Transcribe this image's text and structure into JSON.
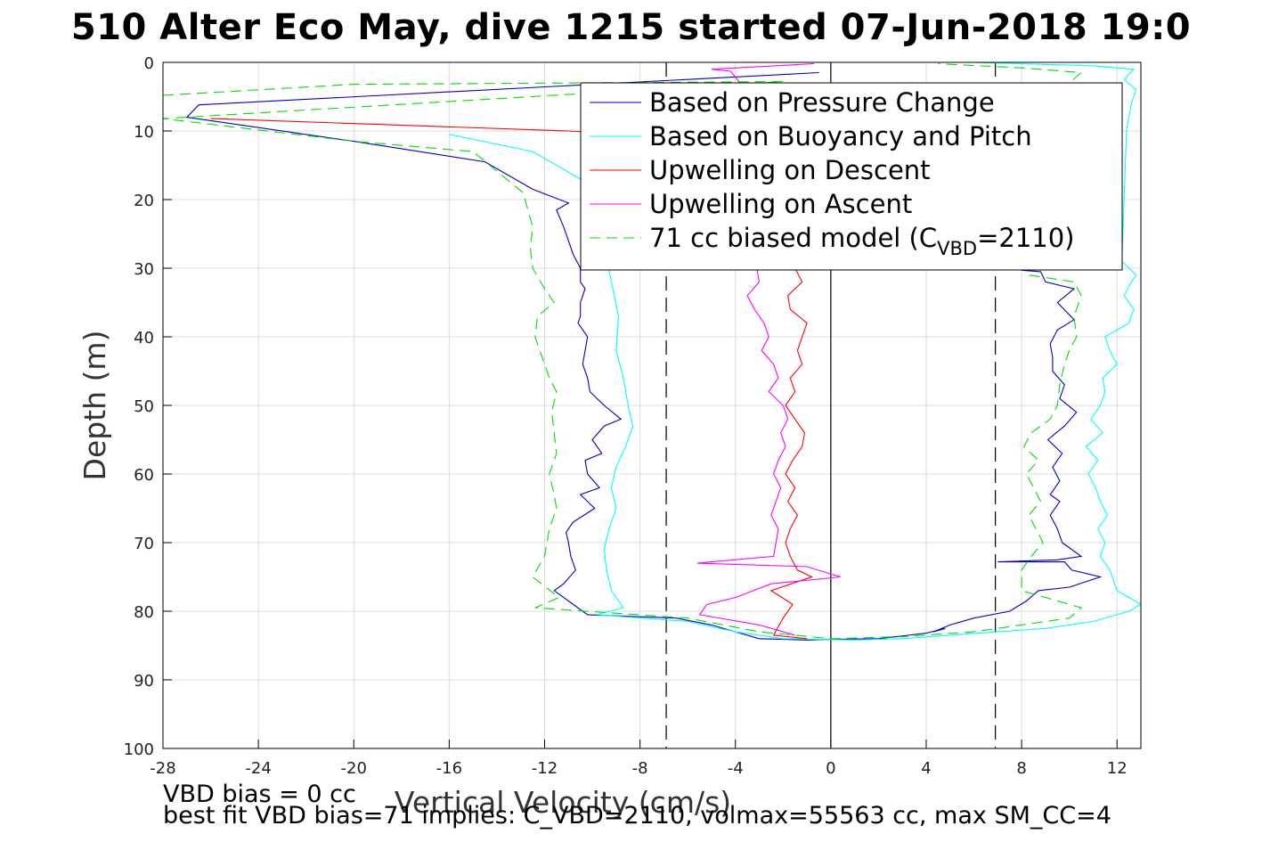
{
  "title": "510 Alter Eco May, dive 1215 started 07-Jun-2018 19:0",
  "notes": {
    "bias": "VBD bias = 0 cc",
    "fit": "best fit VBD bias=71 implies: C_VBD=2110, volmax=55563 cc, max SM_CC=4"
  },
  "chart_data": {
    "type": "line",
    "xlabel": "Vertical Velocity (cm/s)",
    "ylabel": "Depth (m)",
    "xlim": [
      -28,
      13
    ],
    "ylim": [
      0,
      100
    ],
    "y_reversed": true,
    "xticks": [
      -28,
      -24,
      -20,
      -16,
      -12,
      -8,
      -4,
      0,
      4,
      8,
      12
    ],
    "yticks": [
      0,
      10,
      20,
      30,
      40,
      50,
      60,
      70,
      80,
      90,
      100
    ],
    "grid": true,
    "legend_position": "top-right",
    "reference_lines": [
      {
        "x": 0,
        "style": "solid",
        "color": "#000000"
      },
      {
        "x": -6.9,
        "style": "dashed",
        "color": "#000000"
      },
      {
        "x": 6.9,
        "style": "dashed",
        "color": "#000000"
      }
    ],
    "series": [
      {
        "name": "Based on Pressure Change",
        "color": "#0000cc",
        "dash": "solid",
        "points": [
          [
            -0.5,
            1.5
          ],
          [
            -26.5,
            6.2
          ],
          [
            -27,
            8
          ],
          [
            -20,
            11.5
          ],
          [
            -14.5,
            14.5
          ],
          [
            -12.5,
            18.5
          ],
          [
            -11,
            20.5
          ],
          [
            -11.5,
            21.5
          ],
          [
            -11.2,
            24
          ],
          [
            -11,
            26
          ],
          [
            -10.8,
            28
          ],
          [
            -10.5,
            30
          ],
          [
            -10.5,
            32
          ],
          [
            -10.3,
            33
          ],
          [
            -10.5,
            35
          ],
          [
            -10.5,
            37
          ],
          [
            -10.6,
            38
          ],
          [
            -10.2,
            40
          ],
          [
            -10.3,
            42
          ],
          [
            -10.4,
            44
          ],
          [
            -10.2,
            46
          ],
          [
            -10.1,
            48
          ],
          [
            -9.5,
            50
          ],
          [
            -8.8,
            52
          ],
          [
            -9.5,
            53
          ],
          [
            -10,
            55
          ],
          [
            -9.6,
            57
          ],
          [
            -10.3,
            58
          ],
          [
            -10.2,
            60
          ],
          [
            -9.7,
            62
          ],
          [
            -10.5,
            63
          ],
          [
            -9.9,
            65
          ],
          [
            -10.8,
            67
          ],
          [
            -11.1,
            68.5
          ],
          [
            -11,
            70
          ],
          [
            -10.9,
            72
          ],
          [
            -10.7,
            74
          ],
          [
            -11.2,
            76
          ],
          [
            -11.6,
            77
          ],
          [
            -11,
            78.5
          ],
          [
            -10.2,
            80.5
          ],
          [
            -6.5,
            81
          ],
          [
            -5,
            82
          ],
          [
            -4,
            83
          ],
          [
            -3,
            84
          ],
          [
            -1,
            84.2
          ],
          [
            0,
            84.1
          ],
          [
            2,
            84
          ],
          [
            4,
            83.2
          ],
          [
            4.8,
            82.5
          ],
          [
            4.3,
            83
          ],
          [
            5,
            82
          ],
          [
            6,
            81
          ],
          [
            7.5,
            80
          ],
          [
            8.2,
            78.5
          ],
          [
            8.7,
            77
          ],
          [
            10,
            76.5
          ],
          [
            11.3,
            75
          ],
          [
            10.1,
            74
          ],
          [
            9.8,
            72.8
          ],
          [
            7,
            72.8
          ],
          [
            9.5,
            72.5
          ],
          [
            10.5,
            72
          ],
          [
            9.7,
            70
          ],
          [
            9.5,
            68
          ],
          [
            9.2,
            66
          ],
          [
            9.6,
            64
          ],
          [
            9.2,
            63
          ],
          [
            9.6,
            61
          ],
          [
            9.3,
            59
          ],
          [
            9.7,
            57
          ],
          [
            9.1,
            55
          ],
          [
            9.8,
            53
          ],
          [
            10.3,
            51
          ],
          [
            9.6,
            49
          ],
          [
            9.8,
            47
          ],
          [
            9.3,
            45
          ],
          [
            9.3,
            43
          ],
          [
            9.2,
            41
          ],
          [
            9.5,
            39
          ],
          [
            10.2,
            37.5
          ],
          [
            9.5,
            35
          ],
          [
            10.2,
            33
          ],
          [
            9,
            32
          ],
          [
            8.8,
            30.5
          ],
          [
            8,
            30.3
          ]
        ]
      },
      {
        "name": "Based on Buoyancy and Pitch",
        "color": "#00ffff",
        "dash": "solid",
        "points": [
          [
            -16,
            10.5
          ],
          [
            -12.5,
            13
          ],
          [
            -10.5,
            17
          ],
          [
            -9.8,
            22
          ],
          [
            -9.5,
            27
          ],
          [
            -9.2,
            32
          ],
          [
            -8.9,
            37
          ],
          [
            -9,
            42
          ],
          [
            -8.7,
            46
          ],
          [
            -8.5,
            50
          ],
          [
            -8.3,
            53
          ],
          [
            -8.6,
            56
          ],
          [
            -9,
            59
          ],
          [
            -9.2,
            62
          ],
          [
            -9,
            65
          ],
          [
            -9.3,
            68
          ],
          [
            -9.5,
            71
          ],
          [
            -9.4,
            74
          ],
          [
            -9.2,
            77
          ],
          [
            -8.7,
            79.5
          ],
          [
            -9.8,
            80.5
          ],
          [
            -6,
            81.5
          ],
          [
            -4,
            83
          ],
          [
            -2,
            84
          ],
          [
            1,
            84.2
          ],
          [
            3,
            84
          ],
          [
            5,
            83.5
          ],
          [
            7,
            83
          ],
          [
            9,
            82.5
          ],
          [
            11,
            81.5
          ],
          [
            12.5,
            80
          ],
          [
            13,
            79
          ],
          [
            12,
            77
          ],
          [
            11.7,
            74
          ],
          [
            11.3,
            72
          ],
          [
            11.5,
            70
          ],
          [
            11.2,
            68
          ],
          [
            11.6,
            66
          ],
          [
            11.3,
            64
          ],
          [
            11.1,
            62
          ],
          [
            10.8,
            60
          ],
          [
            11.2,
            58
          ],
          [
            10.7,
            56
          ],
          [
            11.4,
            54
          ],
          [
            10.9,
            52
          ],
          [
            11.3,
            50
          ],
          [
            11.5,
            48
          ],
          [
            11.4,
            46
          ],
          [
            12,
            44
          ],
          [
            11.7,
            42
          ],
          [
            11.5,
            40
          ],
          [
            12.5,
            38
          ],
          [
            12.7,
            36
          ],
          [
            12.3,
            34
          ],
          [
            12.6,
            32
          ],
          [
            12.8,
            31
          ],
          [
            12.5,
            30
          ],
          [
            12.2,
            29
          ],
          [
            12.4,
            10
          ],
          [
            12.5,
            8
          ],
          [
            12.6,
            6
          ],
          [
            12.8,
            4
          ],
          [
            12.3,
            2.5
          ],
          [
            12.7,
            1
          ],
          [
            11,
            0.5
          ],
          [
            6,
            0
          ]
        ]
      },
      {
        "name": "Upwelling on Descent",
        "color": "#ff0000",
        "dash": "solid",
        "points": [
          [
            -26,
            8.2
          ],
          [
            -11,
            10
          ],
          [
            -4,
            11.5
          ],
          [
            -1.5,
            30
          ],
          [
            -1.2,
            32
          ],
          [
            -1.8,
            34
          ],
          [
            -1.7,
            36
          ],
          [
            -1,
            38
          ],
          [
            -1.2,
            40
          ],
          [
            -1.4,
            42
          ],
          [
            -1.2,
            44
          ],
          [
            -1.7,
            46
          ],
          [
            -1.5,
            48
          ],
          [
            -1.9,
            50
          ],
          [
            -1.5,
            52
          ],
          [
            -1.1,
            54
          ],
          [
            -1.2,
            56
          ],
          [
            -1.6,
            58
          ],
          [
            -1.9,
            60
          ],
          [
            -1.5,
            62
          ],
          [
            -1.8,
            64
          ],
          [
            -1.4,
            66
          ],
          [
            -1.7,
            68
          ],
          [
            -1.9,
            70
          ],
          [
            -1.7,
            72
          ],
          [
            -1.4,
            74
          ],
          [
            -0.8,
            75
          ],
          [
            -2.5,
            77
          ],
          [
            -1.6,
            79
          ],
          [
            -2,
            81
          ],
          [
            -2.4,
            83.5
          ],
          [
            -1,
            84
          ]
        ]
      },
      {
        "name": "Upwelling on Ascent",
        "color": "#ff00ff",
        "dash": "solid",
        "points": [
          [
            -0.7,
            0.2
          ],
          [
            -5,
            1
          ],
          [
            -4.2,
            1.3
          ],
          [
            -3.8,
            3
          ],
          [
            -3.1,
            30
          ],
          [
            -3,
            32
          ],
          [
            -3.5,
            34
          ],
          [
            -3.2,
            36
          ],
          [
            -2.8,
            38
          ],
          [
            -2.6,
            40
          ],
          [
            -2.9,
            42
          ],
          [
            -2.4,
            44
          ],
          [
            -2.2,
            46
          ],
          [
            -2.6,
            48
          ],
          [
            -2,
            50
          ],
          [
            -1.8,
            52
          ],
          [
            -2.1,
            54
          ],
          [
            -1.9,
            56
          ],
          [
            -2.2,
            58
          ],
          [
            -2.4,
            60
          ],
          [
            -2.1,
            62
          ],
          [
            -2.3,
            64
          ],
          [
            -2.5,
            66
          ],
          [
            -2.2,
            68
          ],
          [
            -2.3,
            70
          ],
          [
            -2.4,
            72
          ],
          [
            -5.6,
            73
          ],
          [
            -1,
            73.5
          ],
          [
            0.4,
            75
          ],
          [
            -2.5,
            76
          ],
          [
            -4,
            78
          ],
          [
            -5.2,
            79
          ],
          [
            -5.5,
            80.5
          ],
          [
            -3,
            82
          ],
          [
            -1.5,
            83.5
          ]
        ]
      },
      {
        "name": "71 cc biased model (C_VBD=2110)",
        "color": "#00dd00",
        "dash": "dashed",
        "points": [
          [
            -28,
            4.8
          ],
          [
            -20,
            3.2
          ],
          [
            -2,
            2.8
          ],
          [
            -28,
            8.2
          ],
          [
            -20,
            11.5
          ],
          [
            -15,
            13
          ],
          [
            -12.9,
            19
          ],
          [
            -12.5,
            24
          ],
          [
            -12.6,
            27
          ],
          [
            -12.5,
            30
          ],
          [
            -12,
            33
          ],
          [
            -11.6,
            35
          ],
          [
            -12.3,
            37
          ],
          [
            -12.4,
            40
          ],
          [
            -12.1,
            43
          ],
          [
            -11.8,
            46
          ],
          [
            -11.5,
            48
          ],
          [
            -11.7,
            51
          ],
          [
            -11.6,
            54
          ],
          [
            -11.5,
            57
          ],
          [
            -11.8,
            60
          ],
          [
            -11.6,
            63
          ],
          [
            -11.5,
            65
          ],
          [
            -11.8,
            68
          ],
          [
            -11.9,
            70
          ],
          [
            -12,
            72
          ],
          [
            -12.5,
            75
          ],
          [
            -11.4,
            78
          ],
          [
            -12.4,
            79.5
          ],
          [
            -6,
            81
          ],
          [
            -3,
            83
          ],
          [
            0,
            84
          ],
          [
            3,
            83.7
          ],
          [
            6,
            83
          ],
          [
            8,
            82
          ],
          [
            10,
            81
          ],
          [
            10.5,
            79.5
          ],
          [
            8,
            77
          ],
          [
            8,
            74
          ],
          [
            8.4,
            72
          ],
          [
            8.9,
            70
          ],
          [
            8.6,
            68
          ],
          [
            8.3,
            66
          ],
          [
            8.8,
            64
          ],
          [
            8.5,
            62
          ],
          [
            8.2,
            60
          ],
          [
            8.7,
            58
          ],
          [
            8.1,
            56
          ],
          [
            8.4,
            54
          ],
          [
            9.2,
            52
          ],
          [
            9.5,
            50
          ],
          [
            9.6,
            47
          ],
          [
            9.8,
            44
          ],
          [
            10,
            42
          ],
          [
            10.3,
            40
          ],
          [
            10.2,
            37
          ],
          [
            10.5,
            34
          ],
          [
            10.2,
            32
          ],
          [
            8.3,
            31
          ],
          [
            8.5,
            10
          ],
          [
            10,
            3
          ],
          [
            10.5,
            1.5
          ],
          [
            8,
            0.8
          ],
          [
            4.5,
            0.2
          ]
        ]
      }
    ]
  }
}
